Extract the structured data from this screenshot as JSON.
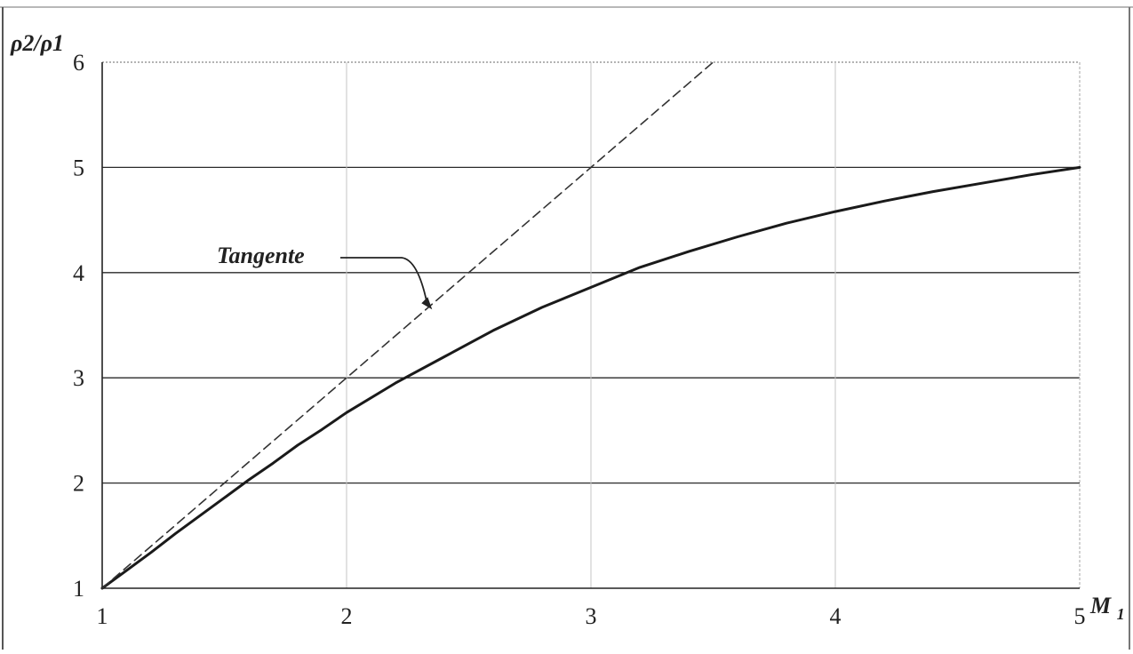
{
  "chart_data": {
    "type": "line",
    "title": "",
    "xlabel": "M",
    "xlabel_subscript": "1",
    "ylabel": "ρ2/ρ1",
    "xlim": [
      1,
      5
    ],
    "ylim": [
      1,
      6
    ],
    "x_ticks": [
      1,
      2,
      3,
      4,
      5
    ],
    "y_ticks": [
      1,
      2,
      3,
      4,
      5,
      6
    ],
    "grid": true,
    "legend": "none",
    "series": [
      {
        "style": "solid",
        "color": "#1a1a1a",
        "points": [
          [
            1.0,
            1.0
          ],
          [
            1.1,
            1.17
          ],
          [
            1.2,
            1.34
          ],
          [
            1.3,
            1.52
          ],
          [
            1.4,
            1.69
          ],
          [
            1.5,
            1.86
          ],
          [
            1.6,
            2.03
          ],
          [
            1.7,
            2.19
          ],
          [
            1.8,
            2.36
          ],
          [
            1.9,
            2.51
          ],
          [
            2.0,
            2.67
          ],
          [
            2.2,
            2.95
          ],
          [
            2.4,
            3.2
          ],
          [
            2.6,
            3.45
          ],
          [
            2.8,
            3.67
          ],
          [
            3.0,
            3.86
          ],
          [
            3.2,
            4.05
          ],
          [
            3.4,
            4.2
          ],
          [
            3.6,
            4.34
          ],
          [
            3.8,
            4.47
          ],
          [
            4.0,
            4.58
          ],
          [
            4.2,
            4.68
          ],
          [
            4.4,
            4.77
          ],
          [
            4.6,
            4.85
          ],
          [
            4.8,
            4.93
          ],
          [
            5.0,
            5.0
          ]
        ]
      },
      {
        "style": "dashed",
        "color": "#333333",
        "points": [
          [
            1.0,
            1.0
          ],
          [
            3.5,
            6.0
          ]
        ]
      }
    ],
    "annotations": [
      {
        "text": "Tangente",
        "points_to": [
          2.35,
          3.65
        ]
      }
    ]
  }
}
